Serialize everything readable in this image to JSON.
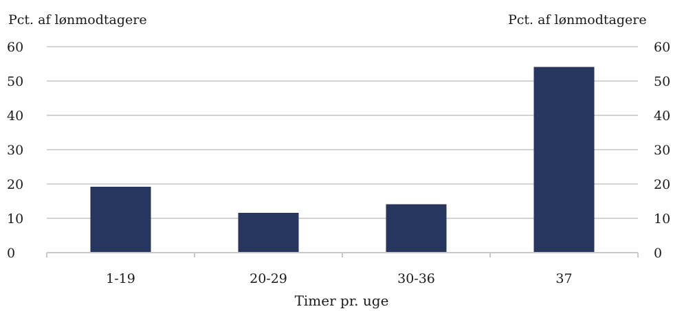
{
  "chart_data": {
    "type": "bar",
    "categories": [
      "1-19",
      "20-29",
      "30-36",
      "37"
    ],
    "values": [
      19.2,
      11.6,
      14.1,
      54.1
    ],
    "left_axis_label": "Pct. af lønmodtagere",
    "right_axis_label": "Pct. af lønmodtagere",
    "xlabel": "Timer pr. uge",
    "ylim": [
      0,
      60
    ],
    "yticks": [
      0,
      10,
      20,
      30,
      40,
      50,
      60
    ],
    "grid": true,
    "bar_color": "#27365e",
    "grid_color": "#d3d3d3",
    "axis_color": "#c8c8c8"
  }
}
